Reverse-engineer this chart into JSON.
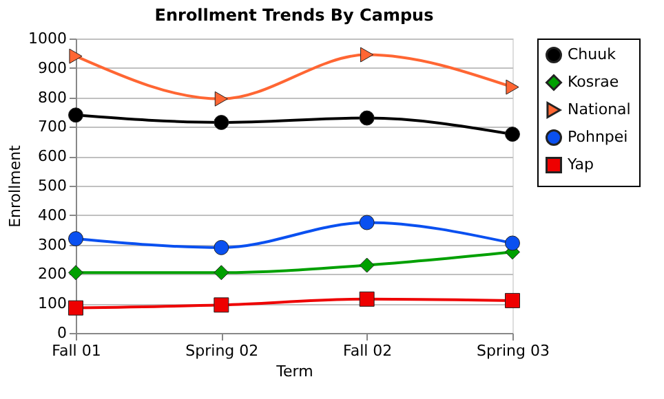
{
  "chart_data": {
    "type": "line",
    "title": "Enrollment  Trends By Campus",
    "xlabel": "Term",
    "ylabel": "Enrollment",
    "categories": [
      "Fall 01",
      "Spring 02",
      "Fall 02",
      "Spring 03"
    ],
    "series": [
      {
        "name": "Chuuk",
        "color": "#000000",
        "marker": "circle",
        "values": [
          740,
          715,
          730,
          675
        ]
      },
      {
        "name": "Kosrae",
        "color": "#00a000",
        "marker": "diamond",
        "values": [
          205,
          205,
          230,
          275
        ]
      },
      {
        "name": "National",
        "color": "#ff6633",
        "marker": "triangle",
        "values": [
          940,
          795,
          945,
          835
        ]
      },
      {
        "name": "Pohnpei",
        "color": "#0a50f0",
        "marker": "circle",
        "values": [
          320,
          290,
          375,
          305
        ]
      },
      {
        "name": "Yap",
        "color": "#ee0000",
        "marker": "square",
        "values": [
          85,
          95,
          115,
          110
        ]
      }
    ],
    "ylim": [
      0,
      1000
    ],
    "yticks": [
      0,
      100,
      200,
      300,
      400,
      500,
      600,
      700,
      800,
      900,
      1000
    ],
    "grid": "y",
    "legend": "right",
    "line_style": "solid"
  }
}
